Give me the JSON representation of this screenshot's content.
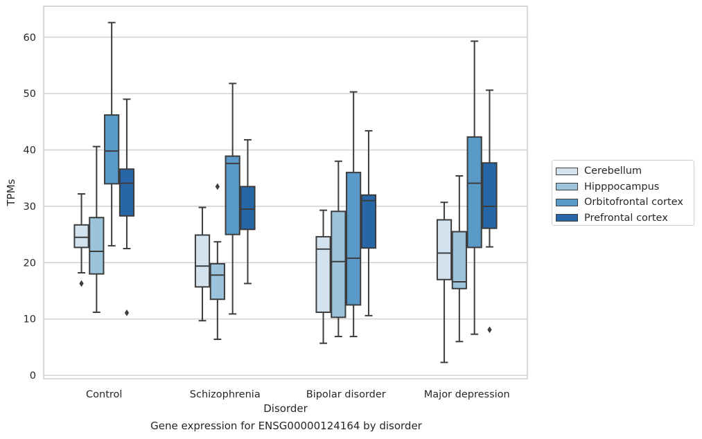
{
  "chart_data": {
    "type": "box",
    "xlabel": "Disorder",
    "ylabel": "TPMs",
    "caption": "Gene expression for ENSG00000124164 by disorder",
    "ylim": [
      -0.6,
      65.5
    ],
    "yticks": [
      0,
      10,
      20,
      30,
      40,
      50,
      60
    ],
    "grid": "horizontal",
    "legend_position": "right",
    "categories": [
      "Control",
      "Schizophrenia",
      "Bipolar disorder",
      "Major depression"
    ],
    "series": [
      {
        "name": "Cerebellum",
        "color": "#d2e2ef",
        "boxes": [
          {
            "whislo": 18.2,
            "q1": 22.7,
            "med": 24.5,
            "q3": 26.7,
            "whishi": 32.2,
            "fliers": [
              16.3
            ]
          },
          {
            "whislo": 9.7,
            "q1": 15.7,
            "med": 19.4,
            "q3": 24.9,
            "whishi": 29.8,
            "fliers": []
          },
          {
            "whislo": 5.7,
            "q1": 11.2,
            "med": 22.4,
            "q3": 24.6,
            "whishi": 29.3,
            "fliers": []
          },
          {
            "whislo": 2.3,
            "q1": 17.0,
            "med": 21.7,
            "q3": 27.6,
            "whishi": 30.7,
            "fliers": []
          }
        ]
      },
      {
        "name": "Hipppocampus",
        "color": "#9bc3dc",
        "boxes": [
          {
            "whislo": 11.2,
            "q1": 18.0,
            "med": 22.0,
            "q3": 28.0,
            "whishi": 40.6,
            "fliers": []
          },
          {
            "whislo": 6.4,
            "q1": 13.5,
            "med": 17.8,
            "q3": 19.8,
            "whishi": 23.7,
            "fliers": [
              33.5
            ]
          },
          {
            "whislo": 6.9,
            "q1": 10.3,
            "med": 20.2,
            "q3": 29.1,
            "whishi": 38.0,
            "fliers": []
          },
          {
            "whislo": 6.0,
            "q1": 15.4,
            "med": 16.6,
            "q3": 25.5,
            "whishi": 35.4,
            "fliers": []
          }
        ]
      },
      {
        "name": "Orbitofrontal cortex",
        "color": "#5a9ac8",
        "boxes": [
          {
            "whislo": 23.0,
            "q1": 34.0,
            "med": 39.8,
            "q3": 46.2,
            "whishi": 62.6,
            "fliers": []
          },
          {
            "whislo": 10.9,
            "q1": 25.0,
            "med": 37.6,
            "q3": 38.9,
            "whishi": 51.8,
            "fliers": []
          },
          {
            "whislo": 6.9,
            "q1": 12.5,
            "med": 20.8,
            "q3": 36.0,
            "whishi": 50.3,
            "fliers": []
          },
          {
            "whislo": 7.3,
            "q1": 22.7,
            "med": 34.1,
            "q3": 42.3,
            "whishi": 59.3,
            "fliers": []
          }
        ]
      },
      {
        "name": "Prefrontal cortex",
        "color": "#2767a8",
        "boxes": [
          {
            "whislo": 22.5,
            "q1": 28.3,
            "med": 34.1,
            "q3": 36.6,
            "whishi": 49.0,
            "fliers": [
              11.1
            ]
          },
          {
            "whislo": 16.3,
            "q1": 25.9,
            "med": 29.5,
            "q3": 33.5,
            "whishi": 41.8,
            "fliers": []
          },
          {
            "whislo": 10.6,
            "q1": 22.6,
            "med": 31.0,
            "q3": 32.0,
            "whishi": 43.4,
            "fliers": []
          },
          {
            "whislo": 22.8,
            "q1": 26.1,
            "med": 30.0,
            "q3": 37.7,
            "whishi": 50.6,
            "fliers": [
              8.1
            ]
          }
        ]
      }
    ]
  }
}
